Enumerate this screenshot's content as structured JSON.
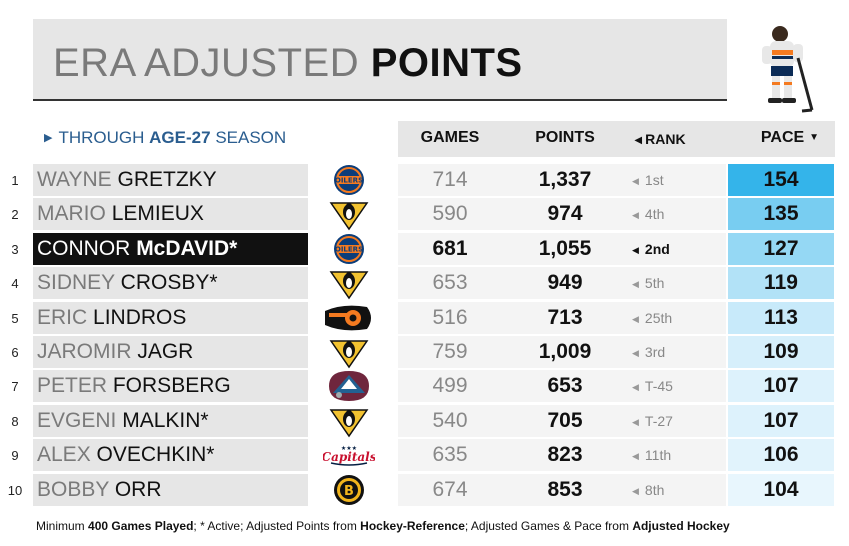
{
  "title": {
    "light": "ERA ADJUSTED",
    "bold": "POINTS"
  },
  "subtitle": {
    "prefix": "THROUGH",
    "bold": "AGE-27",
    "suffix": "SEASON"
  },
  "colors": {
    "pace_max": "#34b4ea",
    "pace_min": "#e8f6fd",
    "subtitle": "#2a5d8f"
  },
  "chart_data": {
    "type": "table",
    "columns": [
      "GAMES",
      "POINTS",
      "RANK",
      "PACE"
    ],
    "sort": "PACE descending",
    "rows": [
      {
        "num": "1",
        "first": "WAYNE",
        "last": "GRETZKY",
        "team": "edmonton-oilers",
        "games": "714",
        "points": "1,337",
        "rank": "1st",
        "pace": 154
      },
      {
        "num": "2",
        "first": "MARIO",
        "last": "LEMIEUX",
        "team": "pittsburgh-penguins",
        "games": "590",
        "points": "974",
        "rank": "4th",
        "pace": 135
      },
      {
        "num": "3",
        "first": "CONNOR",
        "last": "McDAVID*",
        "team": "edmonton-oilers",
        "games": "681",
        "points": "1,055",
        "rank": "2nd",
        "pace": 127,
        "highlight": true
      },
      {
        "num": "4",
        "first": "SIDNEY",
        "last": "CROSBY*",
        "team": "pittsburgh-penguins",
        "games": "653",
        "points": "949",
        "rank": "5th",
        "pace": 119
      },
      {
        "num": "5",
        "first": "ERIC",
        "last": "LINDROS",
        "team": "philadelphia-flyers",
        "games": "516",
        "points": "713",
        "rank": "25th",
        "pace": 113
      },
      {
        "num": "6",
        "first": "JAROMIR",
        "last": "JAGR",
        "team": "pittsburgh-penguins",
        "games": "759",
        "points": "1,009",
        "rank": "3rd",
        "pace": 109
      },
      {
        "num": "7",
        "first": "PETER",
        "last": "FORSBERG",
        "team": "colorado-avalanche",
        "games": "499",
        "points": "653",
        "rank": "T-45",
        "pace": 107
      },
      {
        "num": "8",
        "first": "EVGENI",
        "last": "MALKIN*",
        "team": "pittsburgh-penguins",
        "games": "540",
        "points": "705",
        "rank": "T-27",
        "pace": 107
      },
      {
        "num": "9",
        "first": "ALEX",
        "last": "OVECHKIN*",
        "team": "washington-capitals",
        "games": "635",
        "points": "823",
        "rank": "11th",
        "pace": 106
      },
      {
        "num": "10",
        "first": "BOBBY",
        "last": "ORR",
        "team": "boston-bruins",
        "games": "674",
        "points": "853",
        "rank": "8th",
        "pace": 104
      }
    ]
  },
  "footer": {
    "t1": "Minimum ",
    "b1": "400 Games Played",
    "t2": "; * Active; Adjusted Points from ",
    "b2": "Hockey-Reference",
    "t3": "; Adjusted Games & Pace from ",
    "b3": "Adjusted Hockey"
  }
}
